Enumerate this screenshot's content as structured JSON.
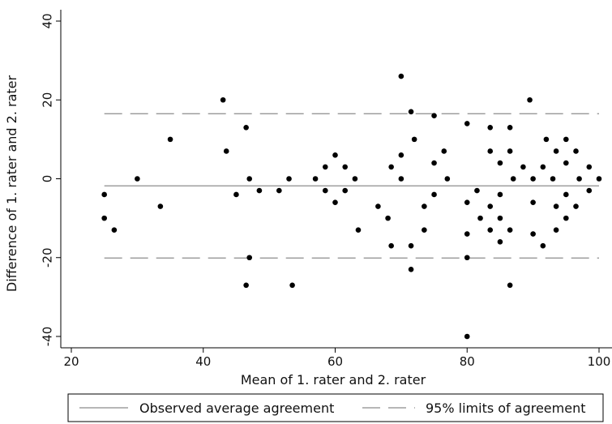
{
  "chart_data": {
    "type": "scatter",
    "title": "",
    "xlabel": "Mean of 1. rater and 2. rater",
    "ylabel": "Difference of 1. rater and 2. rater",
    "xlim": [
      20,
      100
    ],
    "ylim": [
      -40,
      40
    ],
    "x_ticks": [
      20,
      40,
      60,
      80,
      100
    ],
    "y_ticks": [
      -40,
      -20,
      0,
      20,
      40
    ],
    "grid": false,
    "legend_position": "bottom",
    "point_color": "#000000",
    "line_color": "#8c8c8c",
    "mean_difference": -1.8,
    "limits_of_agreement": [
      -20.1,
      16.5
    ],
    "legend": {
      "mean_label": "Observed average agreement",
      "limits_label": "95% limits of agreement"
    },
    "points": [
      [
        25,
        -4
      ],
      [
        25,
        -10
      ],
      [
        26.5,
        -13
      ],
      [
        30,
        0
      ],
      [
        33.5,
        -7
      ],
      [
        35,
        10
      ],
      [
        43,
        20
      ],
      [
        43.5,
        7
      ],
      [
        45,
        -4
      ],
      [
        46.5,
        13
      ],
      [
        46.5,
        -27
      ],
      [
        47,
        0
      ],
      [
        47,
        -20
      ],
      [
        48.5,
        -3
      ],
      [
        51.5,
        -3
      ],
      [
        53,
        0
      ],
      [
        53.5,
        -27
      ],
      [
        57,
        0
      ],
      [
        58.5,
        3
      ],
      [
        58.5,
        -3
      ],
      [
        60,
        6
      ],
      [
        60,
        -6
      ],
      [
        61.5,
        3
      ],
      [
        61.5,
        -3
      ],
      [
        63,
        0
      ],
      [
        63.5,
        -13
      ],
      [
        66.5,
        -7
      ],
      [
        68,
        -10
      ],
      [
        68.5,
        3
      ],
      [
        68.5,
        -17
      ],
      [
        70,
        26
      ],
      [
        70,
        6
      ],
      [
        70,
        0
      ],
      [
        71.5,
        17
      ],
      [
        71.5,
        -17
      ],
      [
        71.5,
        -23
      ],
      [
        72,
        10
      ],
      [
        73.5,
        -7
      ],
      [
        73.5,
        -13
      ],
      [
        75,
        16
      ],
      [
        75,
        4
      ],
      [
        75,
        -4
      ],
      [
        76.5,
        7
      ],
      [
        77,
        0
      ],
      [
        80,
        14
      ],
      [
        80,
        -6
      ],
      [
        80,
        -14
      ],
      [
        80,
        -20
      ],
      [
        80,
        -40
      ],
      [
        81.5,
        -3
      ],
      [
        82,
        -10
      ],
      [
        83.5,
        13
      ],
      [
        83.5,
        7
      ],
      [
        83.5,
        -7
      ],
      [
        83.5,
        -13
      ],
      [
        85,
        4
      ],
      [
        85,
        -4
      ],
      [
        85,
        -10
      ],
      [
        85,
        -16
      ],
      [
        86.5,
        13
      ],
      [
        86.5,
        7
      ],
      [
        86.5,
        -13
      ],
      [
        86.5,
        -27
      ],
      [
        87,
        0
      ],
      [
        88.5,
        3
      ],
      [
        89.5,
        20
      ],
      [
        90,
        0
      ],
      [
        90,
        -6
      ],
      [
        90,
        -14
      ],
      [
        91.5,
        3
      ],
      [
        91.5,
        -17
      ],
      [
        92,
        10
      ],
      [
        93,
        0
      ],
      [
        93.5,
        7
      ],
      [
        93.5,
        -7
      ],
      [
        93.5,
        -13
      ],
      [
        95,
        10
      ],
      [
        95,
        4
      ],
      [
        95,
        -4
      ],
      [
        95,
        -10
      ],
      [
        96.5,
        7
      ],
      [
        96.5,
        -7
      ],
      [
        97,
        0
      ],
      [
        98.5,
        3
      ],
      [
        98.5,
        -3
      ],
      [
        100,
        0
      ]
    ]
  }
}
